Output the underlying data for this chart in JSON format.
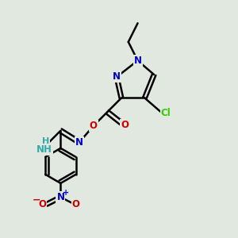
{
  "background_color": "#e0e8e0",
  "bond_color": "#000000",
  "bond_width": 1.8,
  "atom_colors": {
    "N": "#0000cc",
    "O": "#cc0000",
    "Cl": "#33cc00",
    "C": "#000000",
    "H": "#33aaaa"
  },
  "font_size": 8.5,
  "fig_width": 3.0,
  "fig_height": 3.0,
  "dpi": 100
}
